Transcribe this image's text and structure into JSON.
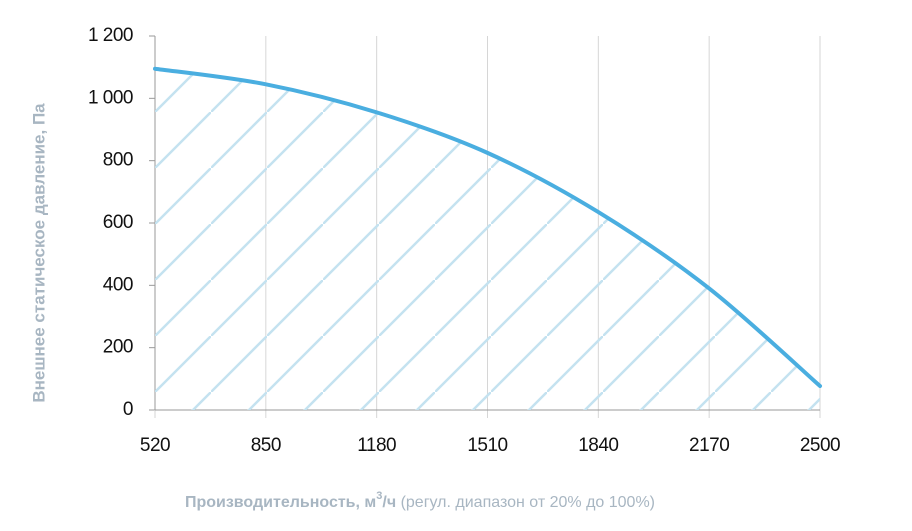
{
  "chart_data": {
    "type": "area",
    "y_label": "Внешнее статическое давление, Па",
    "x_label": {
      "main": "Производительность, м",
      "sup": "3",
      "unit": "/ч",
      "note": "(регул. диапазон от 20% до 100%)"
    },
    "x": [
      520,
      850,
      1180,
      1510,
      1840,
      2170,
      2500
    ],
    "values": [
      1095,
      1045,
      955,
      825,
      635,
      390,
      77
    ],
    "color": "#4aaee0",
    "hatch_color": "#c4e2f0",
    "xlim": [
      520,
      2500
    ],
    "xticks": [
      520,
      850,
      1180,
      1510,
      1840,
      2170,
      2500
    ],
    "ylim": [
      0,
      1200
    ],
    "yticks": [
      0,
      200,
      400,
      600,
      800,
      {
        "value": 1000,
        "label": "1 000"
      },
      {
        "value": 1200,
        "label": "1 200"
      }
    ],
    "grid": true
  }
}
